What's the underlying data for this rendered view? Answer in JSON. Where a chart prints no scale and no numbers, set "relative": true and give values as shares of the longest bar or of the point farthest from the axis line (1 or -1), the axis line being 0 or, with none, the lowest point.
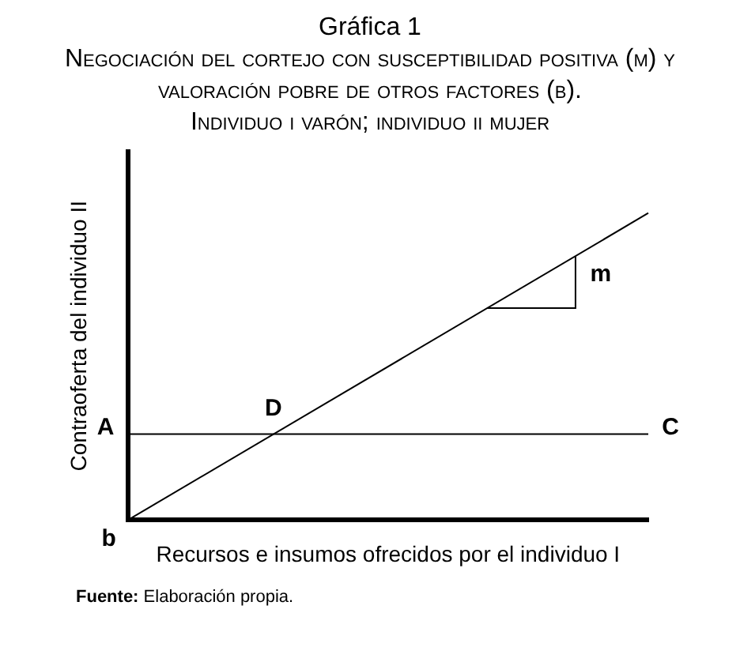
{
  "chart_data": {
    "type": "line",
    "title": "Gráfica 1",
    "subtitle": "Negociación del cortejo con susceptibilidad positiva (m) y valoración pobre de otros factores (b). Individuo i varón; individuo ii mujer",
    "xlabel": "Recursos e insumos ofrecidos por el individuo I",
    "ylabel": "Contraoferta del individuo II",
    "relative": true,
    "categories": [
      null,
      null
    ],
    "series": [
      {
        "color": "#000000",
        "values": [
          0,
          1
        ]
      },
      {
        "color": "#000000",
        "values": [
          0.28,
          0.28
        ]
      }
    ],
    "annotations": [
      "A",
      "C",
      "D",
      "b",
      "m",
      "Fuente: Elaboración propia."
    ],
    "grid": false,
    "legend": false,
    "marker": "none",
    "line_style": "solid"
  }
}
